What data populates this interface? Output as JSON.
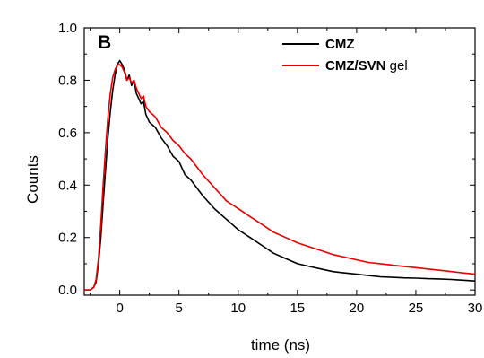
{
  "chart_data": {
    "type": "line",
    "panel_label": "B",
    "xlabel": "time (ns)",
    "ylabel": "Counts",
    "xlim": [
      -3,
      30
    ],
    "ylim": [
      -0.02,
      1.0
    ],
    "x_ticks": [
      0,
      5,
      10,
      15,
      20,
      25,
      30
    ],
    "y_ticks": [
      0.0,
      0.2,
      0.4,
      0.6,
      0.8,
      1.0
    ],
    "x_tick_labels": [
      "0",
      "5",
      "10",
      "15",
      "20",
      "25",
      "30"
    ],
    "y_tick_labels": [
      "0.0",
      "0.2",
      "0.4",
      "0.6",
      "0.8",
      "1.0"
    ],
    "legend_placement": "top-right",
    "grid": false,
    "series": [
      {
        "name": "CMZ",
        "color": "#000000",
        "x": [
          -3,
          -2.5,
          -2.2,
          -2.0,
          -1.8,
          -1.6,
          -1.4,
          -1.2,
          -1.0,
          -0.8,
          -0.6,
          -0.4,
          -0.2,
          0.0,
          0.2,
          0.4,
          0.6,
          0.8,
          1.0,
          1.2,
          1.4,
          1.6,
          1.8,
          2.0,
          2.2,
          2.5,
          3.0,
          3.5,
          4.0,
          4.5,
          5.0,
          5.5,
          6.0,
          7.0,
          8.0,
          9.0,
          10.0,
          11.0,
          12.0,
          13.0,
          14.0,
          15.0,
          16.0,
          17.0,
          18.0,
          19.0,
          20.0,
          21.0,
          22.0,
          23.0,
          24.0,
          25.0,
          26.0,
          27.0,
          28.0,
          29.0,
          30.0
        ],
        "values": [
          0.0,
          0.0,
          0.01,
          0.03,
          0.1,
          0.2,
          0.33,
          0.46,
          0.58,
          0.68,
          0.76,
          0.82,
          0.86,
          0.875,
          0.86,
          0.84,
          0.8,
          0.82,
          0.78,
          0.8,
          0.75,
          0.73,
          0.71,
          0.72,
          0.67,
          0.64,
          0.62,
          0.58,
          0.55,
          0.51,
          0.49,
          0.44,
          0.42,
          0.36,
          0.31,
          0.27,
          0.23,
          0.2,
          0.17,
          0.14,
          0.12,
          0.1,
          0.09,
          0.08,
          0.07,
          0.065,
          0.06,
          0.055,
          0.05,
          0.048,
          0.046,
          0.045,
          0.043,
          0.042,
          0.04,
          0.037,
          0.034
        ]
      },
      {
        "name": "CMZ/SVN gel",
        "color": "#e60000",
        "x": [
          -3,
          -2.5,
          -2.2,
          -2.0,
          -1.8,
          -1.6,
          -1.4,
          -1.2,
          -1.0,
          -0.8,
          -0.6,
          -0.4,
          -0.2,
          0.0,
          0.2,
          0.4,
          0.6,
          0.8,
          1.0,
          1.2,
          1.4,
          1.6,
          1.8,
          2.0,
          2.2,
          2.5,
          3.0,
          3.5,
          4.0,
          4.5,
          5.0,
          5.5,
          6.0,
          7.0,
          8.0,
          9.0,
          10.0,
          11.0,
          12.0,
          13.0,
          14.0,
          15.0,
          16.0,
          17.0,
          18.0,
          19.0,
          20.0,
          21.0,
          22.0,
          23.0,
          24.0,
          25.0,
          26.0,
          27.0,
          28.0,
          29.0,
          30.0
        ],
        "values": [
          0.0,
          0.0,
          0.01,
          0.04,
          0.12,
          0.25,
          0.4,
          0.54,
          0.66,
          0.75,
          0.81,
          0.84,
          0.86,
          0.86,
          0.85,
          0.83,
          0.8,
          0.81,
          0.79,
          0.8,
          0.77,
          0.75,
          0.73,
          0.74,
          0.7,
          0.68,
          0.66,
          0.62,
          0.6,
          0.57,
          0.55,
          0.52,
          0.5,
          0.44,
          0.39,
          0.34,
          0.31,
          0.28,
          0.25,
          0.22,
          0.2,
          0.18,
          0.165,
          0.15,
          0.135,
          0.125,
          0.115,
          0.105,
          0.1,
          0.095,
          0.09,
          0.085,
          0.08,
          0.075,
          0.07,
          0.065,
          0.06
        ]
      }
    ]
  },
  "legend": {
    "entries": [
      {
        "bold": "CMZ",
        "rest": ""
      },
      {
        "bold": "CMZ/SVN",
        "rest": " gel"
      }
    ]
  }
}
